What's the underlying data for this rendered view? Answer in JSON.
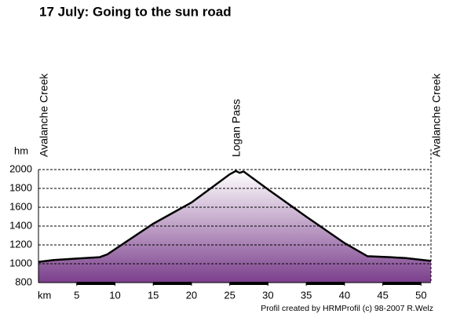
{
  "chart_data": {
    "type": "area",
    "title": "17 July: Going to the sun road",
    "y_label": "hm",
    "x_label": "km",
    "credit": "Profil created by HRMProfil (c) 98-2007 R.Welz",
    "color": "#7b3f8c",
    "x": [
      0,
      2,
      5,
      8,
      9,
      15,
      20,
      25,
      25.8,
      26.3,
      26.8,
      30,
      35,
      40,
      43,
      46,
      48,
      51.3
    ],
    "values": [
      1020,
      1040,
      1055,
      1070,
      1100,
      1425,
      1650,
      1950,
      1985,
      1965,
      1980,
      1790,
      1500,
      1220,
      1080,
      1070,
      1060,
      1030
    ],
    "waypoints": [
      {
        "label": "Avalanche Creek",
        "x": 0
      },
      {
        "label": "Logan Pass",
        "x": 25.1
      },
      {
        "label": "Avalanche Creek",
        "x": 51.3
      }
    ],
    "xlim": [
      0,
      51.3
    ],
    "ylim": [
      800,
      2000
    ],
    "xticks": [
      5,
      10,
      15,
      20,
      25,
      30,
      35,
      40,
      45,
      50
    ],
    "yticks": [
      800,
      1000,
      1200,
      1400,
      1600,
      1800,
      2000
    ],
    "grid": true
  }
}
